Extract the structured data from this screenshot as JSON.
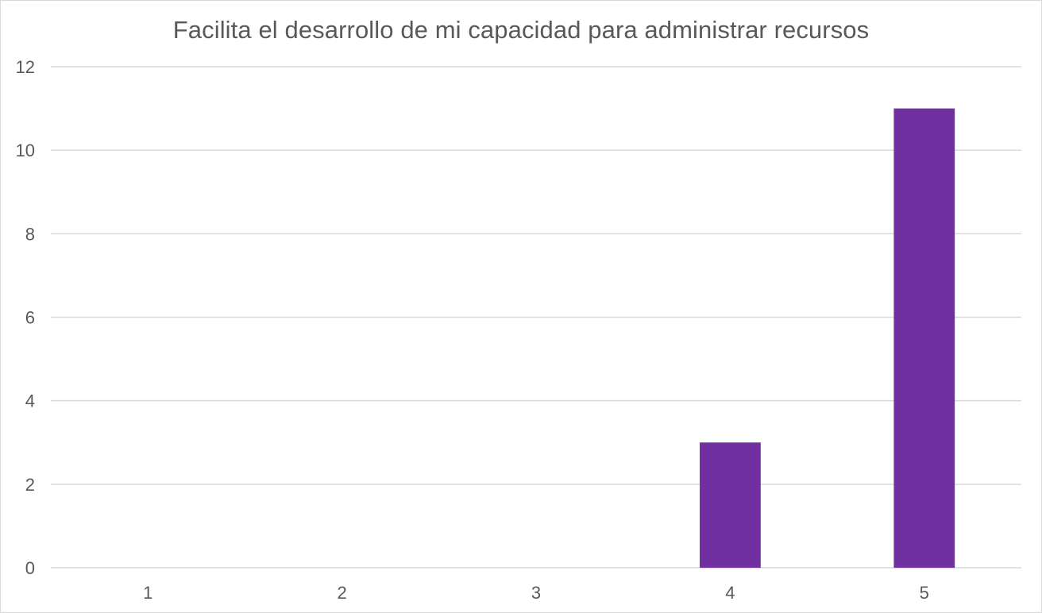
{
  "chart_data": {
    "type": "bar",
    "title": "Facilita el desarrollo de mi capacidad para administrar recursos",
    "xlabel": "",
    "ylabel": "",
    "categories": [
      "1",
      "2",
      "3",
      "4",
      "5"
    ],
    "values": [
      0,
      0,
      0,
      3,
      11
    ],
    "ylim": [
      0,
      12
    ],
    "yticks": [
      0,
      2,
      4,
      6,
      8,
      10,
      12
    ],
    "grid": true,
    "legend": "none",
    "bar_color": "#7030a0",
    "grid_color": "#d9d9d9",
    "text_color": "#595959"
  }
}
